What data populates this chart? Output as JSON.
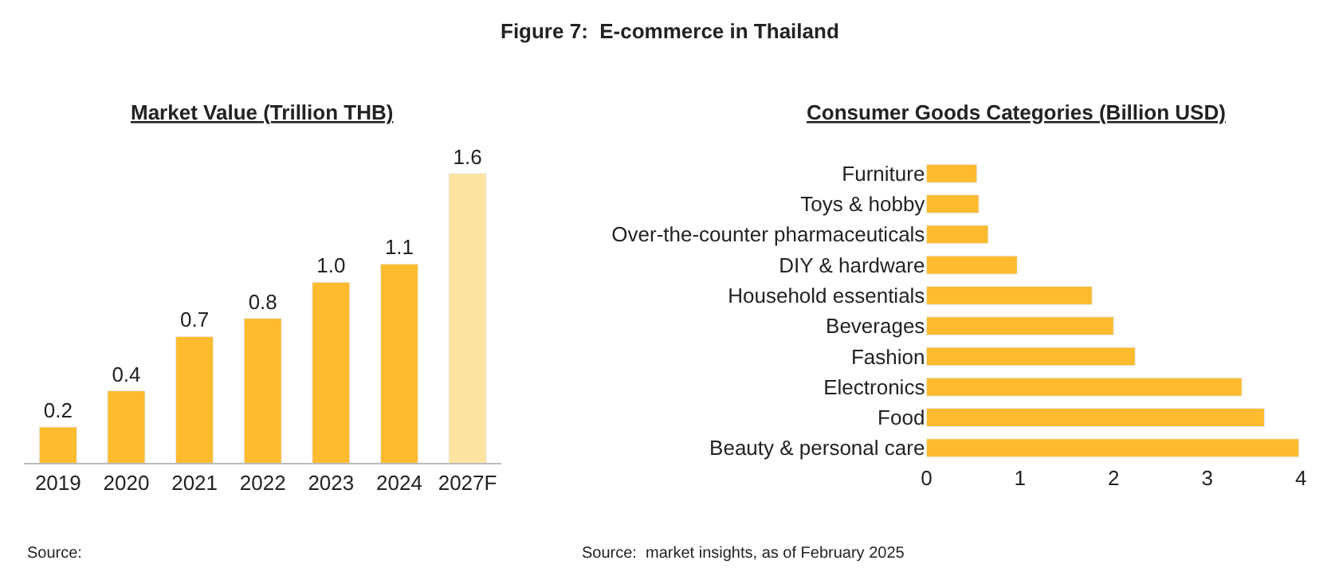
{
  "chart_data": [
    {
      "type": "bar",
      "title": "Market Value (Trillion THB)",
      "categories": [
        "2019",
        "2020",
        "2021",
        "2022",
        "2023",
        "2024",
        "2027F"
      ],
      "values": [
        0.2,
        0.4,
        0.7,
        0.8,
        1.0,
        1.1,
        1.6
      ],
      "colors": [
        "#fdbb2d",
        "#fdbb2d",
        "#fdbb2d",
        "#fdbb2d",
        "#fdbb2d",
        "#fdbb2d",
        "#fde4a0"
      ],
      "value_labels": [
        "0.2",
        "0.4",
        "0.7",
        "0.8",
        "1.0",
        "1.1",
        "1.6"
      ],
      "tick_labels": "x",
      "annotations": [
        "Figure 7:  E-commerce in Thailand",
        "Source:"
      ]
    },
    {
      "type": "bar",
      "orientation": "horizontal",
      "title": "Consumer Goods Categories (Billion USD)",
      "categories": [
        "Furniture",
        "Toys & hobby",
        "Over-the-counter pharmaceuticals",
        "DIY & hardware",
        "Household essentials",
        "Beverages",
        "Fashion",
        "Electronics",
        "Food",
        "Beauty & personal care"
      ],
      "values": [
        0.54,
        0.56,
        0.66,
        0.97,
        1.77,
        2.0,
        2.23,
        3.37,
        3.61,
        3.98
      ],
      "color": "#fdbb2d",
      "xlim": [
        0,
        4
      ],
      "xticks": [
        0,
        1,
        2,
        3,
        4
      ],
      "annotations": [
        "Source:  market insights, as of February 2025"
      ]
    }
  ]
}
